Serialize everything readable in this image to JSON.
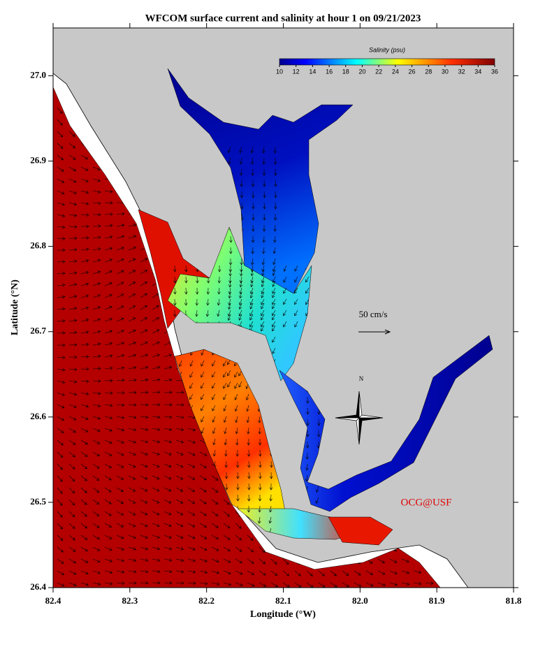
{
  "map": {
    "title": "WFCOM surface current and salinity at hour 1 on 09/21/2023",
    "xlabel": "Longitude (°W)",
    "ylabel": "Latitude (°N)",
    "xlim": [
      82.4,
      81.8
    ],
    "ylim": [
      26.4,
      27.056
    ],
    "xticks": [
      82.4,
      82.3,
      82.2,
      82.1,
      {
        "value": 82,
        "label": "82.0"
      },
      81.9,
      81.8
    ],
    "yticks": [
      26.4,
      26.5,
      26.6,
      26.7,
      26.8,
      26.9,
      {
        "value": 27,
        "label": "27.0"
      }
    ]
  },
  "colorbar": {
    "label": "Salinity (psu)",
    "range": [
      10,
      36
    ],
    "ticks": [
      10,
      12,
      14,
      16,
      18,
      20,
      22,
      24,
      26,
      28,
      30,
      32,
      34,
      36
    ]
  },
  "scale_label": "50 cm/s",
  "north_label": "N",
  "credit": "OCG@USF"
}
